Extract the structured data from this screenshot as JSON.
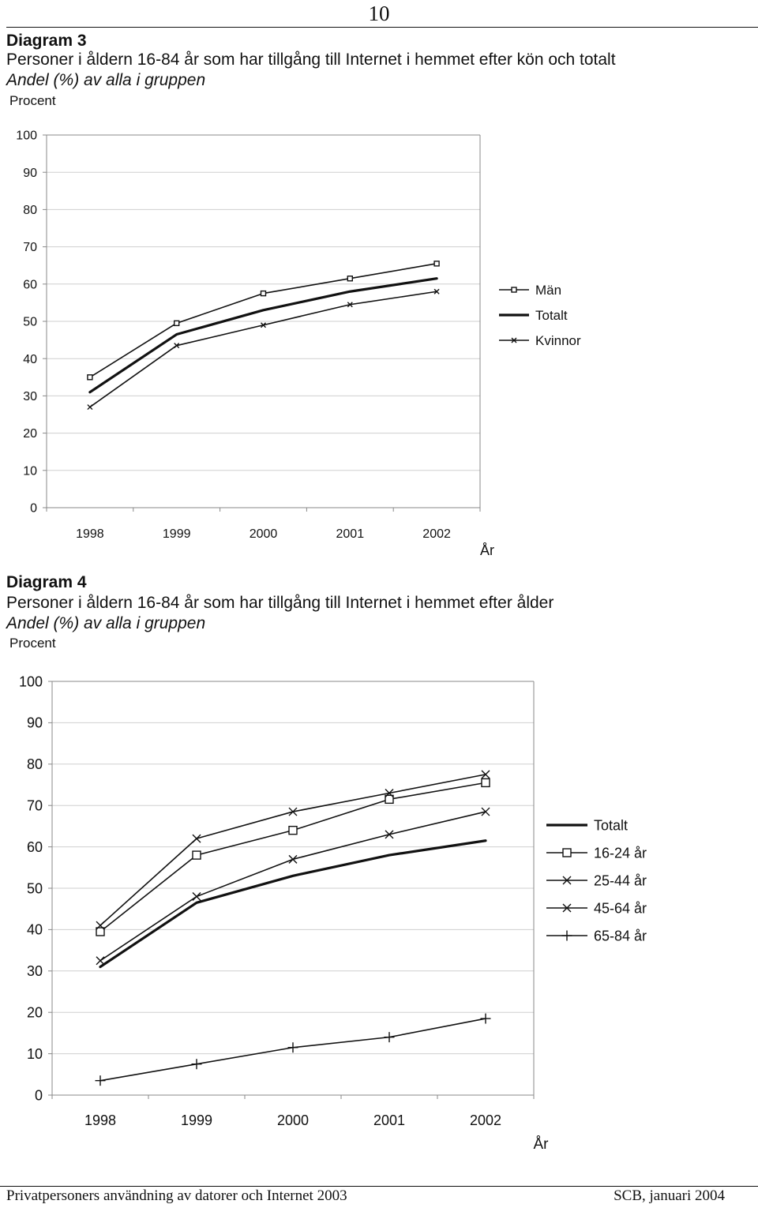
{
  "page_number": "10",
  "footer": {
    "left": "Privatpersoners användning av datorer och Internet 2003",
    "right": "SCB, januari 2004"
  },
  "chart_data": [
    {
      "type": "line",
      "title": "Diagram 3",
      "subtitle": "Personer i åldern 16-84 år som har tillgång till Internet i hemmet efter kön och totalt",
      "unit_note": "Andel (%) av alla i gruppen",
      "ylabel": "Procent",
      "xlabel": "År",
      "categories": [
        "1998",
        "1999",
        "2000",
        "2001",
        "2002"
      ],
      "ylim": [
        0,
        100
      ],
      "yticks": [
        "0",
        "10",
        "20",
        "30",
        "40",
        "50",
        "60",
        "70",
        "80",
        "90",
        "100"
      ],
      "grid": true,
      "legend_position": "right",
      "series": [
        {
          "name": "Män",
          "values": [
            35,
            49.5,
            57.5,
            61.5,
            65.5
          ],
          "marker": "square",
          "color": "#111111"
        },
        {
          "name": "Totalt",
          "values": [
            31,
            46.5,
            53,
            58,
            61.5
          ],
          "marker": "none",
          "color": "#111111"
        },
        {
          "name": "Kvinnor",
          "values": [
            27,
            43.5,
            49,
            54.5,
            58
          ],
          "marker": "x",
          "color": "#111111"
        }
      ]
    },
    {
      "type": "line",
      "title": "Diagram 4",
      "subtitle": "Personer i åldern 16-84 år som har tillgång till Internet i hemmet efter ålder",
      "unit_note": "Andel (%) av alla i gruppen",
      "ylabel": "Procent",
      "xlabel": "År",
      "categories": [
        "1998",
        "1999",
        "2000",
        "2001",
        "2002"
      ],
      "ylim": [
        0,
        100
      ],
      "yticks": [
        "0",
        "10",
        "20",
        "30",
        "40",
        "50",
        "60",
        "70",
        "80",
        "90",
        "100"
      ],
      "grid": true,
      "legend_position": "right",
      "series": [
        {
          "name": "Totalt",
          "values": [
            31,
            46.5,
            53,
            58,
            61.5
          ],
          "marker": "none",
          "color": "#111111"
        },
        {
          "name": "16-24 år",
          "values": [
            39.5,
            58,
            64,
            71.5,
            75.5
          ],
          "marker": "square",
          "color": "#111111"
        },
        {
          "name": "25-44 år",
          "values": [
            41,
            62,
            68.5,
            73,
            77.5
          ],
          "marker": "x",
          "color": "#111111"
        },
        {
          "name": "45-64 år",
          "values": [
            32.5,
            48,
            57,
            63,
            68.5
          ],
          "marker": "x",
          "color": "#111111"
        },
        {
          "name": "65-84 år",
          "values": [
            3.5,
            7.5,
            11.5,
            14,
            18.5
          ],
          "marker": "plus",
          "color": "#111111"
        }
      ]
    }
  ]
}
